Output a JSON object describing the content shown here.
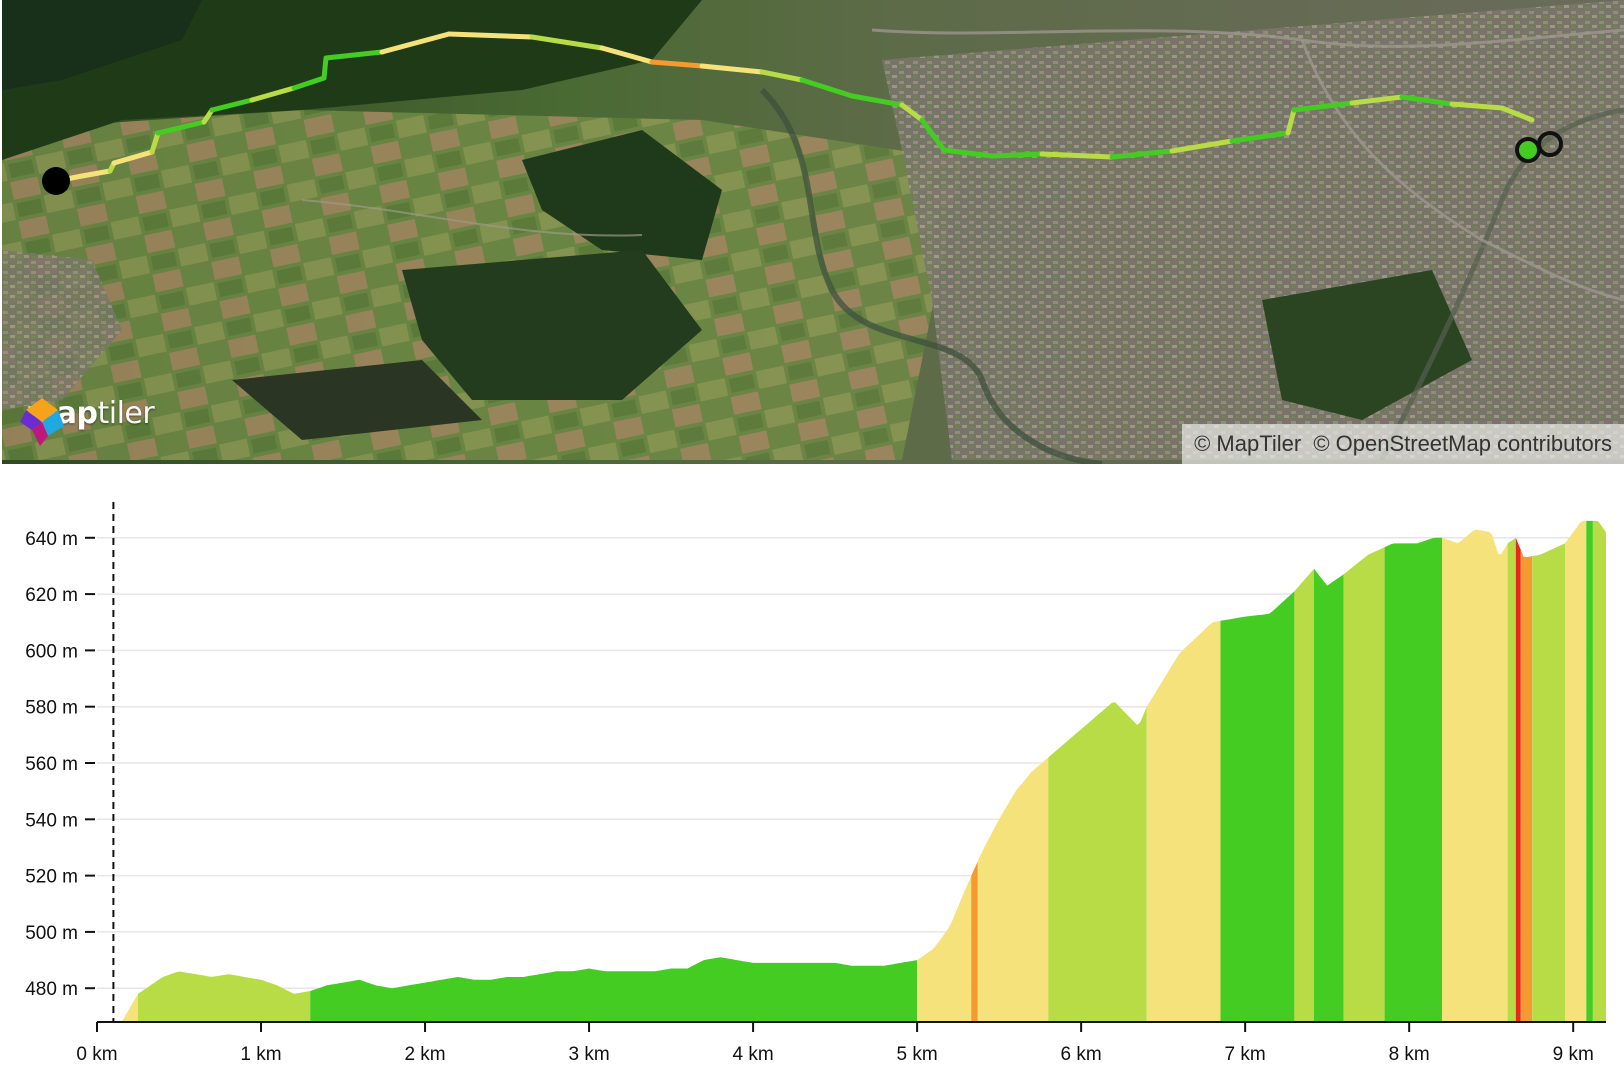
{
  "map": {
    "logo_bold": "map",
    "logo_light": "tiler",
    "attribution": [
      "© MapTiler",
      "© OpenStreetMap contributors"
    ],
    "route": {
      "colors": {
        "flat": "#44cc22",
        "gentle": "#b8dc45",
        "moderate": "#f5e27a",
        "steep": "#f39a30",
        "very_steep": "#e8271a"
      },
      "start_marker_color": "#000000",
      "end_marker_color": "#44cc22"
    }
  },
  "elevation": {
    "y_ticks": [
      "480 m",
      "500 m",
      "520 m",
      "540 m",
      "560 m",
      "580 m",
      "600 m",
      "620 m",
      "640 m"
    ],
    "x_ticks": [
      "0 km",
      "1 km",
      "2 km",
      "3 km",
      "4 km",
      "5 km",
      "6 km",
      "7 km",
      "8 km",
      "9 km"
    ]
  },
  "chart_data": {
    "type": "area",
    "title": "",
    "xlabel": "",
    "ylabel": "",
    "x_unit": "km",
    "y_unit": "m",
    "xlim": [
      0,
      9.2
    ],
    "ylim": [
      468,
      652
    ],
    "grid": true,
    "cursor_x": 0.1,
    "x": [
      0,
      0.15,
      0.25,
      0.3,
      0.4,
      0.5,
      0.6,
      0.7,
      0.8,
      0.9,
      1.0,
      1.1,
      1.2,
      1.3,
      1.4,
      1.5,
      1.6,
      1.7,
      1.8,
      1.9,
      2.0,
      2.1,
      2.2,
      2.3,
      2.4,
      2.5,
      2.6,
      2.7,
      2.8,
      2.9,
      3.0,
      3.1,
      3.2,
      3.3,
      3.4,
      3.5,
      3.6,
      3.7,
      3.8,
      3.9,
      4.0,
      4.1,
      4.2,
      4.3,
      4.4,
      4.5,
      4.6,
      4.7,
      4.8,
      4.9,
      5.0,
      5.1,
      5.2,
      5.3,
      5.4,
      5.5,
      5.6,
      5.7,
      5.8,
      6.0,
      6.2,
      6.35,
      6.4,
      6.6,
      6.8,
      7.0,
      7.15,
      7.3,
      7.42,
      7.5,
      7.6,
      7.75,
      7.9,
      8.05,
      8.15,
      8.2,
      8.3,
      8.4,
      8.5,
      8.55,
      8.6,
      8.65,
      8.7,
      8.8,
      8.95,
      9.05,
      9.15,
      9.2
    ],
    "y": [
      468,
      468,
      478,
      480,
      484,
      486,
      485,
      484,
      485,
      484,
      483,
      481,
      478,
      479,
      481,
      482,
      483,
      481,
      480,
      481,
      482,
      483,
      484,
      483,
      483,
      484,
      484,
      485,
      486,
      486,
      487,
      486,
      486,
      486,
      486,
      487,
      487,
      490,
      491,
      490,
      489,
      489,
      489,
      489,
      489,
      489,
      488,
      488,
      488,
      489,
      490,
      494,
      502,
      516,
      529,
      540,
      550,
      557,
      562,
      572,
      582,
      573,
      580,
      599,
      610,
      612,
      613,
      621,
      629,
      623,
      627,
      634,
      638,
      638,
      640,
      640,
      638,
      643,
      642,
      633,
      638,
      640,
      633,
      634,
      638,
      646,
      646,
      642
    ],
    "grade_bands": [
      {
        "x0": 0.15,
        "x1": 0.25,
        "grade": "moderate"
      },
      {
        "x0": 0.25,
        "x1": 1.3,
        "grade": "gentle"
      },
      {
        "x0": 1.3,
        "x1": 5.0,
        "grade": "flat"
      },
      {
        "x0": 5.0,
        "x1": 5.33,
        "grade": "moderate"
      },
      {
        "x0": 5.33,
        "x1": 5.37,
        "grade": "steep"
      },
      {
        "x0": 5.37,
        "x1": 5.8,
        "grade": "moderate"
      },
      {
        "x0": 5.8,
        "x1": 6.4,
        "grade": "gentle"
      },
      {
        "x0": 6.4,
        "x1": 6.85,
        "grade": "moderate"
      },
      {
        "x0": 6.85,
        "x1": 7.3,
        "grade": "flat"
      },
      {
        "x0": 7.3,
        "x1": 7.42,
        "grade": "gentle"
      },
      {
        "x0": 7.42,
        "x1": 7.6,
        "grade": "flat"
      },
      {
        "x0": 7.6,
        "x1": 7.85,
        "grade": "gentle"
      },
      {
        "x0": 7.85,
        "x1": 8.2,
        "grade": "flat"
      },
      {
        "x0": 8.2,
        "x1": 8.6,
        "grade": "moderate"
      },
      {
        "x0": 8.6,
        "x1": 8.65,
        "grade": "gentle"
      },
      {
        "x0": 8.65,
        "x1": 8.68,
        "grade": "very_steep"
      },
      {
        "x0": 8.68,
        "x1": 8.75,
        "grade": "steep"
      },
      {
        "x0": 8.75,
        "x1": 8.95,
        "grade": "gentle"
      },
      {
        "x0": 8.95,
        "x1": 9.08,
        "grade": "moderate"
      },
      {
        "x0": 9.08,
        "x1": 9.12,
        "grade": "flat"
      },
      {
        "x0": 9.12,
        "x1": 9.2,
        "grade": "gentle"
      }
    ]
  }
}
